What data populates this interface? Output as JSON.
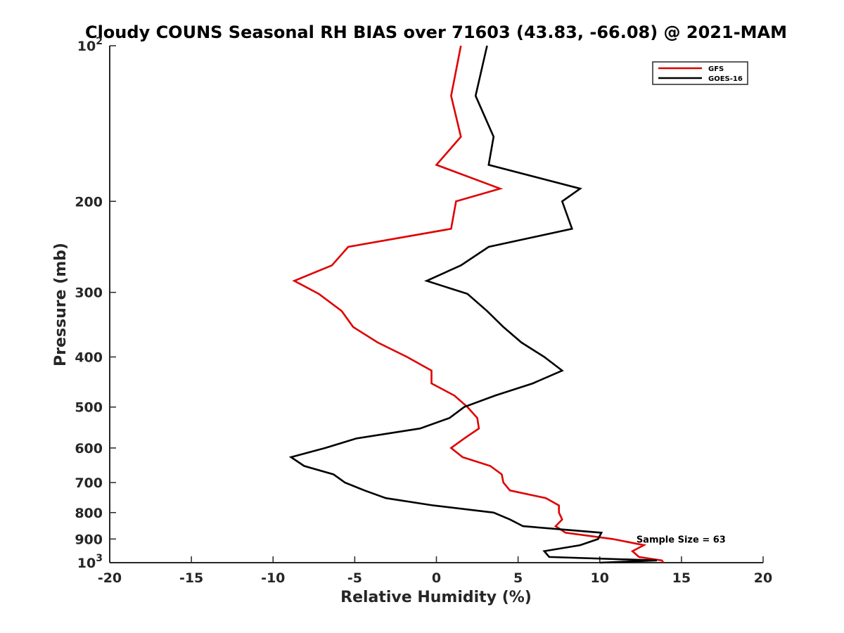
{
  "chart_data": {
    "type": "line",
    "title": "Cloudy COUNS Seasonal RH BIAS over 71603 (43.83, -66.08) @ 2021-MAM",
    "xlabel": "Relative Humidity (%)",
    "ylabel": "Pressure (mb)",
    "xlim": [
      -20,
      20
    ],
    "ylim": [
      100,
      1000
    ],
    "yscale": "log",
    "y_reversed": true,
    "grid": false,
    "legend_position": "top-right",
    "x_ticks": [
      {
        "value": -20,
        "label": "-20"
      },
      {
        "value": -15,
        "label": "-15"
      },
      {
        "value": -10,
        "label": "-10"
      },
      {
        "value": -5,
        "label": "-5"
      },
      {
        "value": 0,
        "label": "0"
      },
      {
        "value": 5,
        "label": "5"
      },
      {
        "value": 10,
        "label": "10"
      },
      {
        "value": 15,
        "label": "15"
      },
      {
        "value": 20,
        "label": "20"
      }
    ],
    "y_ticks": [
      {
        "value": 100,
        "base": "10",
        "exp": "2"
      },
      {
        "value": 200,
        "base": "200",
        "exp": ""
      },
      {
        "value": 300,
        "base": "300",
        "exp": ""
      },
      {
        "value": 400,
        "base": "400",
        "exp": ""
      },
      {
        "value": 500,
        "base": "500",
        "exp": ""
      },
      {
        "value": 600,
        "base": "600",
        "exp": ""
      },
      {
        "value": 700,
        "base": "700",
        "exp": ""
      },
      {
        "value": 800,
        "base": "800",
        "exp": ""
      },
      {
        "value": 900,
        "base": "900",
        "exp": ""
      },
      {
        "value": 1000,
        "base": "10",
        "exp": "3"
      }
    ],
    "series": [
      {
        "name": "GFS",
        "color": "#e00000",
        "points": [
          [
            1.5,
            100
          ],
          [
            0.9,
            125
          ],
          [
            1.5,
            150
          ],
          [
            0.0,
            170
          ],
          [
            3.9,
            189
          ],
          [
            1.2,
            200
          ],
          [
            0.9,
            226
          ],
          [
            -5.4,
            245
          ],
          [
            -6.4,
            266
          ],
          [
            -8.7,
            285
          ],
          [
            -7.2,
            302
          ],
          [
            -5.8,
            326
          ],
          [
            -5.1,
            350
          ],
          [
            -3.6,
            375
          ],
          [
            -1.8,
            400
          ],
          [
            -0.3,
            425
          ],
          [
            -0.3,
            450
          ],
          [
            1.1,
            475
          ],
          [
            1.9,
            500
          ],
          [
            2.5,
            525
          ],
          [
            2.6,
            550
          ],
          [
            1.7,
            575
          ],
          [
            0.9,
            600
          ],
          [
            1.6,
            625
          ],
          [
            3.3,
            650
          ],
          [
            4.0,
            675
          ],
          [
            4.1,
            700
          ],
          [
            4.5,
            725
          ],
          [
            6.7,
            750
          ],
          [
            7.5,
            775
          ],
          [
            7.5,
            800
          ],
          [
            7.7,
            825
          ],
          [
            7.3,
            850
          ],
          [
            7.9,
            875
          ],
          [
            10.8,
            900
          ],
          [
            12.7,
            925
          ],
          [
            12.0,
            950
          ],
          [
            12.4,
            975
          ],
          [
            13.8,
            990
          ],
          [
            13.9,
            1000
          ]
        ]
      },
      {
        "name": "GOES-16",
        "color": "#000000",
        "points": [
          [
            3.1,
            100
          ],
          [
            2.4,
            125
          ],
          [
            3.5,
            150
          ],
          [
            3.2,
            170
          ],
          [
            8.8,
            189
          ],
          [
            7.7,
            200
          ],
          [
            8.3,
            226
          ],
          [
            3.2,
            245
          ],
          [
            1.5,
            266
          ],
          [
            -0.6,
            285
          ],
          [
            1.9,
            302
          ],
          [
            3.1,
            326
          ],
          [
            4.1,
            350
          ],
          [
            5.2,
            375
          ],
          [
            6.6,
            400
          ],
          [
            7.7,
            425
          ],
          [
            5.9,
            450
          ],
          [
            3.6,
            475
          ],
          [
            1.7,
            500
          ],
          [
            0.8,
            525
          ],
          [
            -1.0,
            550
          ],
          [
            -4.9,
            575
          ],
          [
            -6.8,
            600
          ],
          [
            -8.9,
            625
          ],
          [
            -8.1,
            650
          ],
          [
            -6.3,
            675
          ],
          [
            -5.6,
            700
          ],
          [
            -4.4,
            725
          ],
          [
            -3.1,
            750
          ],
          [
            -0.2,
            775
          ],
          [
            3.5,
            800
          ],
          [
            4.5,
            825
          ],
          [
            5.3,
            850
          ],
          [
            10.1,
            875
          ],
          [
            9.9,
            900
          ],
          [
            8.8,
            925
          ],
          [
            6.6,
            950
          ],
          [
            6.9,
            975
          ],
          [
            13.5,
            990
          ],
          [
            10.0,
            1000
          ]
        ]
      }
    ],
    "legend": [
      "GFS",
      "GOES-16"
    ],
    "annotation": {
      "text": "Sample Size = 63",
      "x": 12.5,
      "y": 900
    }
  }
}
